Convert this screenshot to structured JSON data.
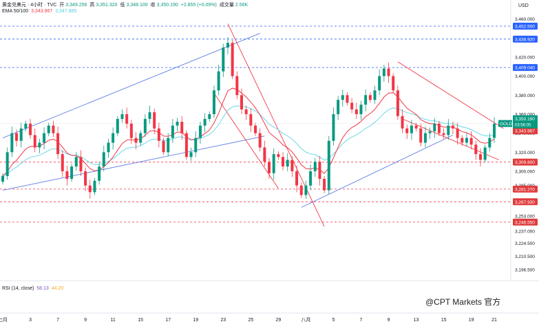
{
  "header": {
    "symbol_line": "黄金兑美元 · 4小时 · TVC",
    "open_label": "开",
    "open": "3,349.256",
    "high_label": "高",
    "high": "3,351.320",
    "low_label": "低",
    "low": "3,348.100",
    "close_label": "收",
    "close": "3,350.190",
    "change": "+2.855 (+0.09%)",
    "volume_label": "成交量",
    "volume": "2.56K",
    "ema_label": "EMA 50/100",
    "ema50": "3,343.967",
    "ema100": "3,347.685"
  },
  "rsi": {
    "label": "RSI (14, close)",
    "v1": "58.13",
    "v2": "44.20"
  },
  "watermark": "@CPT Markets 官方",
  "colors": {
    "up": "#089981",
    "down": "#f23645",
    "ema50": "#f23645",
    "ema100": "#80deea",
    "channel": "#5b7ee5",
    "resistance_dash": "#2962ff",
    "support_dash": "#f23645",
    "tag_red": "#e03c3c",
    "tag_blue": "#2962ff",
    "gold_tag": "#089981"
  },
  "chart_data": {
    "type": "candlestick",
    "currency": "USD",
    "ylim": [
      3185,
      3480
    ],
    "y_axis_ticks": [
      "3,460.000",
      "3,440.000",
      "3,420.000",
      "3,400.000",
      "3,380.000",
      "3,360.000",
      "3,340.000",
      "3,320.000",
      "3,300.000",
      "3,285.000",
      "3,270.000",
      "3,253.000",
      "3,237.000",
      "3,224.500",
      "3,210.500",
      "3,196.500"
    ],
    "y_tick_values": [
      3460,
      3440,
      3420,
      3400,
      3380,
      3360,
      3340,
      3320,
      3300,
      3285,
      3270,
      3253,
      3237,
      3224.5,
      3210.5,
      3196.5
    ],
    "x_axis_ticks": [
      "七月",
      "3",
      "7",
      "9",
      "11",
      "15",
      "17",
      "19",
      "23",
      "25",
      "29",
      "八月",
      "5",
      "7",
      "9",
      "13",
      "15",
      "19",
      "21"
    ],
    "x_tick_positions": [
      0,
      6,
      12,
      18,
      24,
      30,
      36,
      42,
      48,
      54,
      60,
      66,
      72,
      78,
      84,
      90,
      96,
      102,
      107
    ],
    "resistance_levels": [
      {
        "value": 3452.5,
        "label": "3,452.500"
      },
      {
        "value": 3438.92,
        "label": "3,438.920"
      },
      {
        "value": 3409.04,
        "label": "3,409.040"
      }
    ],
    "support_levels": [
      {
        "value": 3309.6,
        "label": "3,309.600"
      },
      {
        "value": 3281.27,
        "label": "3,281.270"
      },
      {
        "value": 3267.93,
        "label": "3,267.930"
      },
      {
        "value": 3246.55,
        "label": "3,246.550"
      }
    ],
    "current_price": {
      "label": "GOLD",
      "value": 3350.19,
      "price": "3,350.190",
      "countdown": "03:56:05"
    },
    "ema_tags": [
      {
        "value": 3347.685,
        "label": "3,347.685"
      },
      {
        "value": 3343.967,
        "label": "3,343.967"
      }
    ],
    "closes": [
      3295,
      3320,
      3340,
      3332,
      3345,
      3350,
      3338,
      3325,
      3330,
      3340,
      3348,
      3340,
      3318,
      3300,
      3292,
      3305,
      3315,
      3300,
      3285,
      3278,
      3290,
      3305,
      3320,
      3330,
      3340,
      3355,
      3360,
      3350,
      3335,
      3330,
      3340,
      3355,
      3362,
      3345,
      3332,
      3320,
      3335,
      3348,
      3352,
      3340,
      3315,
      3320,
      3335,
      3348,
      3355,
      3360,
      3385,
      3405,
      3430,
      3435,
      3400,
      3380,
      3365,
      3360,
      3348,
      3340,
      3325,
      3310,
      3298,
      3318,
      3315,
      3305,
      3312,
      3300,
      3285,
      3275,
      3285,
      3300,
      3310,
      3292,
      3280,
      3332,
      3360,
      3375,
      3380,
      3372,
      3365,
      3360,
      3370,
      3380,
      3375,
      3385,
      3400,
      3408,
      3400,
      3385,
      3358,
      3345,
      3340,
      3348,
      3345,
      3330,
      3340,
      3342,
      3350,
      3340,
      3338,
      3348,
      3345,
      3335,
      3330,
      3335,
      3328,
      3318,
      3312,
      3325,
      3335,
      3350
    ]
  }
}
